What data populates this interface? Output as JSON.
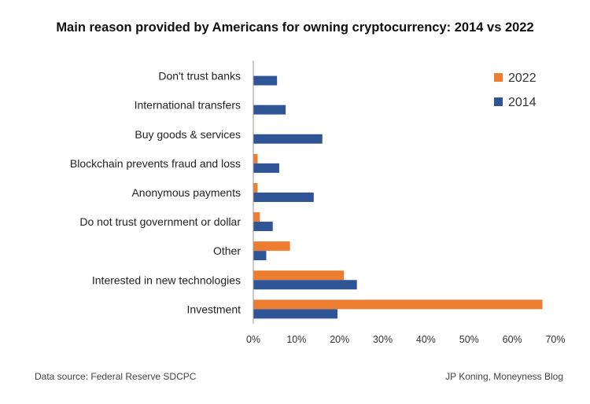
{
  "chart_data": {
    "type": "bar",
    "orientation": "horizontal",
    "title": "Main reason provided by Americans for owning cryptocurrency: 2014 vs 2022",
    "categories": [
      "Don't trust banks",
      "International transfers",
      "Buy goods & services",
      "Blockchain prevents fraud and loss",
      "Anonymous payments",
      "Do not trust government or dollar",
      "Other",
      "Interested in new technologies",
      "Investment"
    ],
    "series": [
      {
        "name": "2022",
        "color": "#ED7D31",
        "values": [
          0,
          0,
          0,
          1,
          1,
          1.5,
          8.5,
          21,
          67
        ]
      },
      {
        "name": "2014",
        "color": "#2F5597",
        "values": [
          5.5,
          7.5,
          16,
          6,
          14,
          4.5,
          3,
          24,
          19.5
        ]
      }
    ],
    "xlim": [
      0,
      70
    ],
    "xticks": [
      "0%",
      "10%",
      "20%",
      "30%",
      "40%",
      "50%",
      "60%",
      "70%"
    ],
    "legend": "top-right",
    "grid": false
  },
  "footer": {
    "source": "Data source: Federal Reserve SDCPC",
    "credit": "JP Koning, Moneyness Blog"
  }
}
